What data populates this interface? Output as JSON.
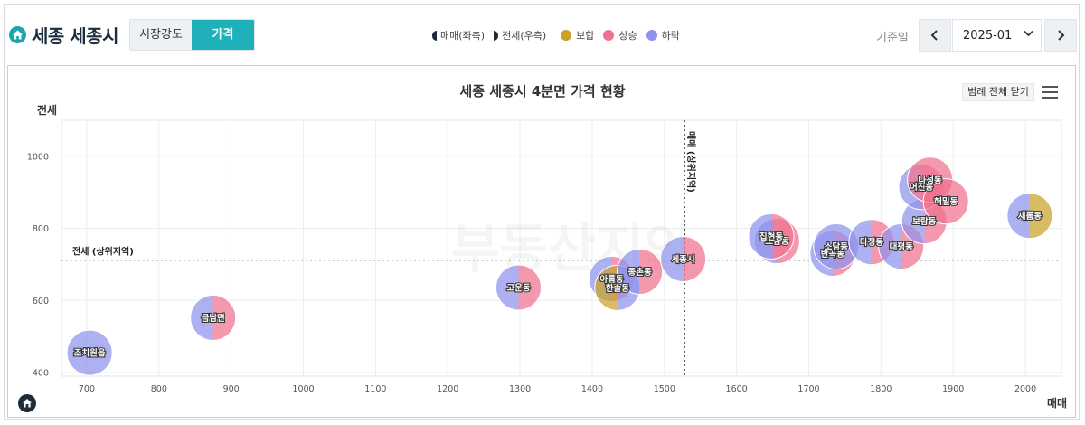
{
  "header": {
    "region_title": "세종 세종시",
    "tabs": [
      {
        "label": "시장강도",
        "active": false
      },
      {
        "label": "가격",
        "active": true
      }
    ],
    "legend": {
      "sale_marker": "매매(좌측)",
      "jeonse_marker": "전세(우측)",
      "items": [
        {
          "label": "보합",
          "color": "#c9a227"
        },
        {
          "label": "상승",
          "color": "#f0718f"
        },
        {
          "label": "하락",
          "color": "#8f93ec"
        }
      ]
    },
    "base_date_label": "기준일",
    "date_value": "2025-01",
    "prev_icon": "chevron-left-icon",
    "next_icon": "chevron-right-icon",
    "select_icon": "chevron-down-icon"
  },
  "panel": {
    "legend_close_label": "범례 전체 닫기",
    "menu_icon": "hamburger-menu-icon",
    "watermark": "부동산지인"
  },
  "colors": {
    "flat": "#c9a227",
    "up": "#f0718f",
    "down": "#8f93ec",
    "accent": "#1fb0ba"
  },
  "chart_data": {
    "type": "scatter",
    "title": "세종 세종시 4분면 가격 현황",
    "xlabel": "매매",
    "ylabel": "전세",
    "xlim": [
      665,
      2050
    ],
    "ylim": [
      390,
      1100
    ],
    "x_ticks": [
      700,
      800,
      900,
      1000,
      1100,
      1200,
      1300,
      1400,
      1500,
      1600,
      1700,
      1800,
      1900,
      2000
    ],
    "y_ticks": [
      400,
      600,
      800,
      1000
    ],
    "grid": true,
    "ref_lines": {
      "sale": {
        "value": 1528,
        "label": "매매 (상위지역)"
      },
      "jeonse": {
        "value": 712,
        "label": "전세 (상위지역)"
      }
    },
    "points": [
      {
        "name": "조치원읍",
        "x": 704,
        "y": 455,
        "sale": "down",
        "jeonse": "down"
      },
      {
        "name": "금남면",
        "x": 875,
        "y": 552,
        "sale": "down",
        "jeonse": "up"
      },
      {
        "name": "고운동",
        "x": 1298,
        "y": 636,
        "sale": "down",
        "jeonse": "up"
      },
      {
        "name": "아름동",
        "x": 1427,
        "y": 660,
        "sale": "down",
        "jeonse": "up"
      },
      {
        "name": "한솔동",
        "x": 1435,
        "y": 635,
        "sale": "flat",
        "jeonse": "down"
      },
      {
        "name": "종촌동",
        "x": 1466,
        "y": 680,
        "sale": "down",
        "jeonse": "up"
      },
      {
        "name": "세종시",
        "x": 1526,
        "y": 715,
        "sale": "down",
        "jeonse": "up"
      },
      {
        "name": "도담동",
        "x": 1656,
        "y": 765,
        "sale": "down",
        "jeonse": "up"
      },
      {
        "name": "집현동",
        "x": 1648,
        "y": 778,
        "sale": "down",
        "jeonse": "up"
      },
      {
        "name": "반곡동",
        "x": 1733,
        "y": 730,
        "sale": "down",
        "jeonse": "up"
      },
      {
        "name": "소담동",
        "x": 1738,
        "y": 750,
        "sale": "down",
        "jeonse": "down"
      },
      {
        "name": "다정동",
        "x": 1787,
        "y": 762,
        "sale": "down",
        "jeonse": "up"
      },
      {
        "name": "대평동",
        "x": 1828,
        "y": 750,
        "sale": "down",
        "jeonse": "up"
      },
      {
        "name": "보람동",
        "x": 1860,
        "y": 820,
        "sale": "down",
        "jeonse": "up"
      },
      {
        "name": "어진동",
        "x": 1856,
        "y": 915,
        "sale": "down",
        "jeonse": "up"
      },
      {
        "name": "나성동",
        "x": 1868,
        "y": 935,
        "sale": "up",
        "jeonse": "up"
      },
      {
        "name": "해밀동",
        "x": 1890,
        "y": 875,
        "sale": "up",
        "jeonse": "up"
      },
      {
        "name": "새롬동",
        "x": 2006,
        "y": 835,
        "sale": "down",
        "jeonse": "flat"
      }
    ]
  }
}
